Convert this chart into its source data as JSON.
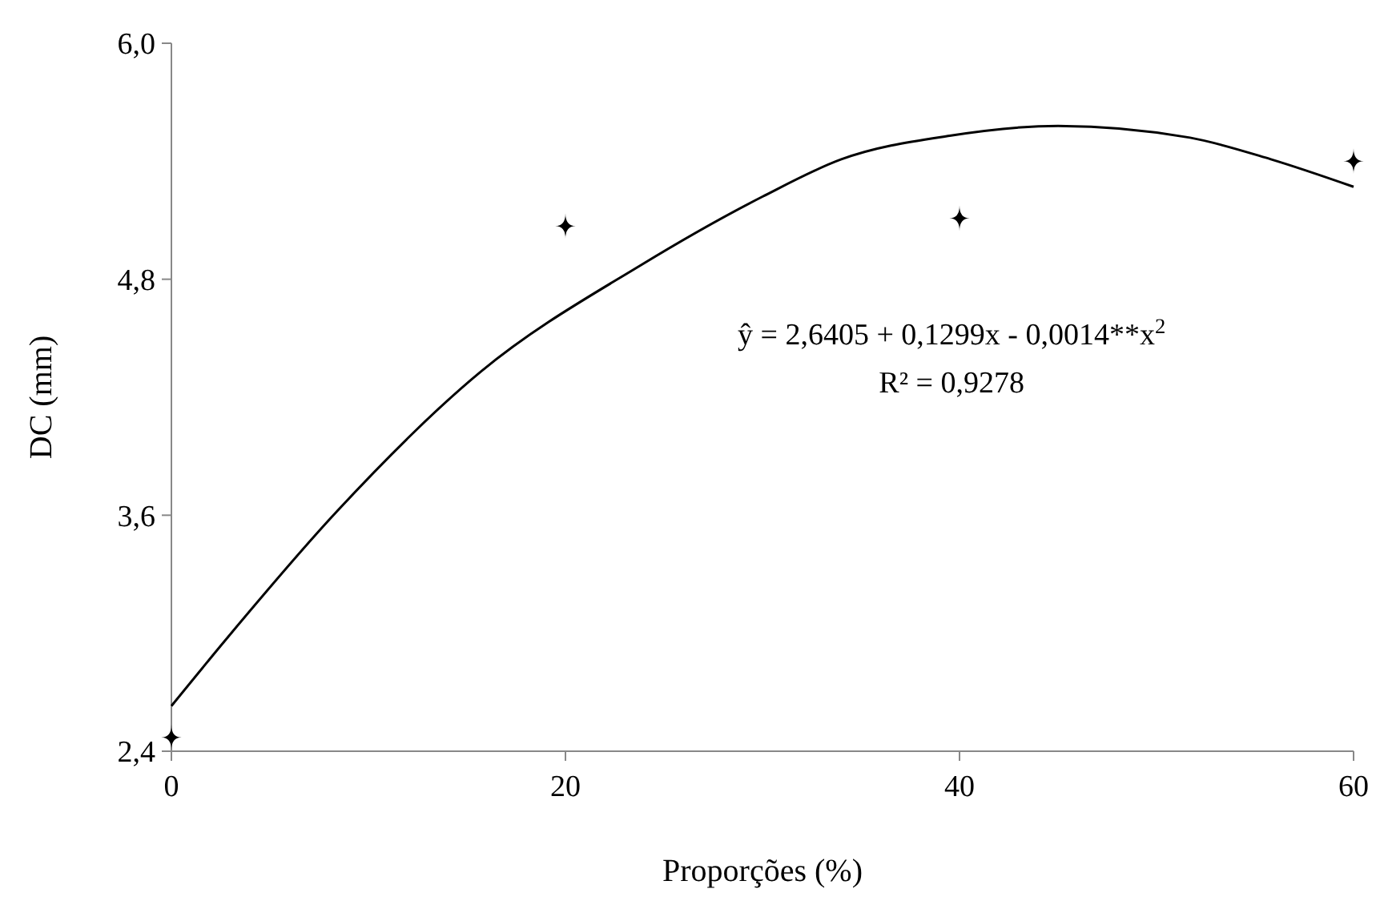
{
  "chart_data": {
    "type": "scatter",
    "xlabel": "Proporções (%)",
    "ylabel": "DC (mm)",
    "xlim": [
      0,
      60
    ],
    "xticks": [
      0,
      20,
      40,
      60
    ],
    "ylim": [
      2.4,
      6.0
    ],
    "yticks": [
      {
        "value": 2.4,
        "label": "2,4"
      },
      {
        "value": 3.6,
        "label": "3,6"
      },
      {
        "value": 4.8,
        "label": "4,8"
      },
      {
        "value": 6.0,
        "label": "6,0"
      }
    ],
    "marker": "diamond",
    "grid": false,
    "series": [
      {
        "color": "#000000",
        "x": [
          0,
          20,
          40,
          60
        ],
        "values": [
          2.47,
          5.07,
          5.11,
          5.4
        ]
      },
      {
        "type": "line",
        "color": "#000000",
        "marker": "none",
        "line_style": "solid",
        "x": [
          0,
          2.7,
          8.4,
          15.7,
          23.8,
          30,
          34,
          39.5,
          45,
          51.7,
          55.8,
          60
        ],
        "values": [
          2.63,
          2.96,
          3.62,
          4.33,
          4.87,
          5.22,
          5.41,
          5.53,
          5.58,
          5.52,
          5.41,
          5.27
        ]
      }
    ],
    "annotations": [
      "ŷ = 2,6405 + 0,1299x - 0,0014**x$^{2}$",
      "R² = 0,9278"
    ]
  }
}
